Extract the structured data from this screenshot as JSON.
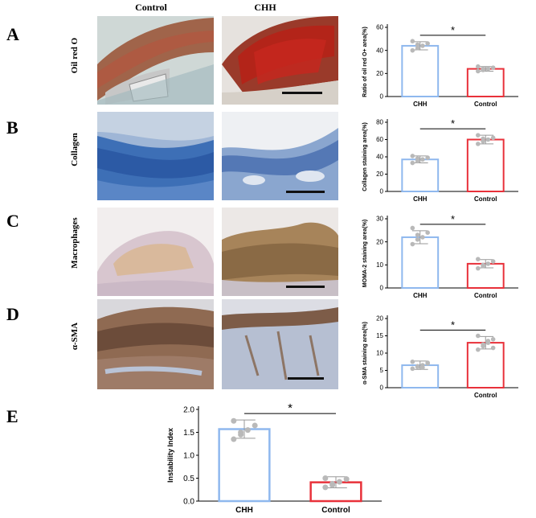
{
  "columns": [
    "Control",
    "CHH"
  ],
  "rows": [
    {
      "letter": "A",
      "label": "Oil red O"
    },
    {
      "letter": "B",
      "label": "Collagen"
    },
    {
      "letter": "C",
      "label": "Macrophages"
    },
    {
      "letter": "D",
      "label": "α-SMA"
    }
  ],
  "panel_e_letter": "E",
  "colors": {
    "chh": "#8fb8ee",
    "control": "#e8313a",
    "dots": "#b9b9b9"
  },
  "chart_data": [
    {
      "id": "A",
      "type": "bar",
      "categories": [
        "CHH",
        "Control"
      ],
      "values": [
        44,
        24
      ],
      "errors": [
        3.5,
        2
      ],
      "points": [
        [
          40,
          42,
          44,
          46,
          48,
          45
        ],
        [
          22,
          23,
          24,
          25,
          26,
          24
        ]
      ],
      "title": "",
      "xlabel": "",
      "ylabel": "Ratio of oil red O+ area(%)",
      "ylim": [
        0,
        60
      ],
      "yticks": [
        0,
        20,
        40,
        60
      ],
      "significance": "*"
    },
    {
      "id": "B",
      "type": "bar",
      "categories": [
        "CHH",
        "Control"
      ],
      "values": [
        37,
        60
      ],
      "errors": [
        4,
        5
      ],
      "points": [
        [
          33,
          35,
          37,
          39,
          41,
          38
        ],
        [
          55,
          58,
          60,
          62,
          65,
          61
        ]
      ],
      "title": "",
      "xlabel": "",
      "ylabel": "Collagen staining area(%)",
      "ylim": [
        0,
        80
      ],
      "yticks": [
        0,
        20,
        40,
        60,
        80
      ],
      "significance": "*"
    },
    {
      "id": "C",
      "type": "bar",
      "categories": [
        "CHH",
        "Control"
      ],
      "values": [
        22,
        10.5
      ],
      "errors": [
        2.8,
        1.8
      ],
      "points": [
        [
          19,
          21,
          22,
          24,
          26,
          23
        ],
        [
          8.5,
          9.5,
          10.5,
          11.5,
          12.5,
          10
        ]
      ],
      "title": "",
      "xlabel": "",
      "ylabel": "MOMA-2 staining area(%)",
      "ylim": [
        0,
        30
      ],
      "yticks": [
        0,
        10,
        20,
        30
      ],
      "significance": "*"
    },
    {
      "id": "D",
      "type": "bar",
      "categories": [
        "",
        "Control"
      ],
      "values": [
        6.5,
        13
      ],
      "errors": [
        1.2,
        1.8
      ],
      "points": [
        [
          5.5,
          6,
          6.5,
          7,
          7.5,
          6.2,
          5.8,
          7.2
        ],
        [
          11,
          12,
          13,
          14,
          15,
          12.5,
          13.5,
          11.5
        ]
      ],
      "title": "",
      "xlabel": "",
      "ylabel": "α-SMA staining area(%)",
      "ylim": [
        0,
        20
      ],
      "yticks": [
        0,
        5,
        10,
        15,
        20
      ],
      "significance": "*"
    },
    {
      "id": "E",
      "type": "bar",
      "categories": [
        "CHH",
        "Control"
      ],
      "values": [
        1.57,
        0.41
      ],
      "errors": [
        0.2,
        0.12
      ],
      "points": [
        [
          1.35,
          1.45,
          1.55,
          1.65,
          1.75,
          1.5
        ],
        [
          0.3,
          0.35,
          0.42,
          0.48,
          0.5,
          0.38
        ]
      ],
      "title": "",
      "xlabel": "",
      "ylabel": "Instability Index",
      "ylim": [
        0,
        2.0
      ],
      "yticks": [
        0.0,
        0.5,
        1.0,
        1.5,
        2.0
      ],
      "significance": "*"
    }
  ]
}
